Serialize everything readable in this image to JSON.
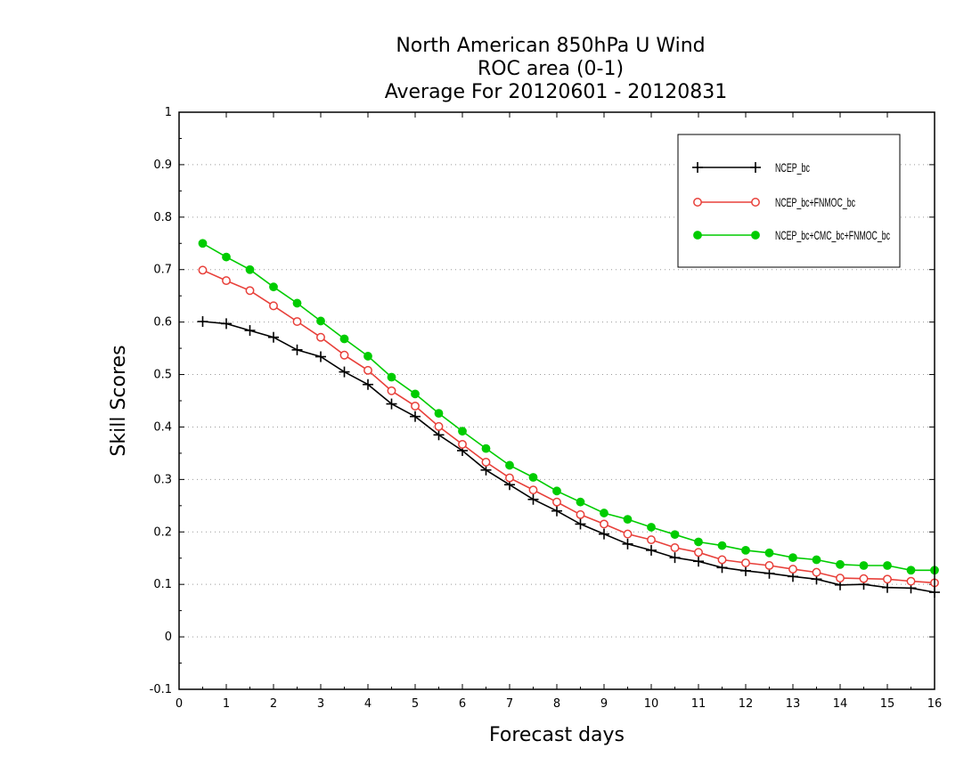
{
  "chart_data": {
    "type": "line",
    "title": [
      "North American 850hPa U Wind",
      "ROC area (0-1)",
      "Average For 20120601 - 20120831"
    ],
    "xlabel": "Forecast days",
    "ylabel": "Skill Scores",
    "xlim": [
      0,
      16
    ],
    "ylim": [
      -0.1,
      1
    ],
    "xticks": [
      0,
      1,
      2,
      3,
      4,
      5,
      6,
      7,
      8,
      9,
      10,
      11,
      12,
      13,
      14,
      15,
      16
    ],
    "yticks": [
      -0.1,
      0,
      0.1,
      0.2,
      0.3,
      0.4,
      0.5,
      0.6,
      0.7,
      0.8,
      0.9,
      1
    ],
    "ytick_labels": [
      "-0.1",
      "0",
      "0.1",
      "0.2",
      "0.3",
      "0.4",
      "0.5",
      "0.6",
      "0.7",
      "0.8",
      "0.9",
      "1"
    ],
    "grid": "horizontal-dotted",
    "legend_position": "top-right",
    "x": [
      0.5,
      1,
      1.5,
      2,
      2.5,
      3,
      3.5,
      4,
      4.5,
      5,
      5.5,
      6,
      6.5,
      7,
      7.5,
      8,
      8.5,
      9,
      9.5,
      10,
      10.5,
      11,
      11.5,
      12,
      12.5,
      13,
      13.5,
      14,
      14.5,
      15,
      15.5,
      16
    ],
    "series": [
      {
        "name": "NCEP_bc",
        "color": "#000000",
        "marker": "plus",
        "values": [
          0.601,
          0.597,
          0.584,
          0.571,
          0.547,
          0.534,
          0.505,
          0.481,
          0.444,
          0.42,
          0.385,
          0.355,
          0.318,
          0.29,
          0.262,
          0.24,
          0.215,
          0.196,
          0.177,
          0.165,
          0.151,
          0.144,
          0.132,
          0.126,
          0.121,
          0.115,
          0.11,
          0.099,
          0.1,
          0.094,
          0.093,
          0.085
        ]
      },
      {
        "name": "NCEP_bc+FNMOC_bc",
        "color": "#e8403a",
        "marker": "open-circle",
        "values": [
          0.699,
          0.679,
          0.66,
          0.631,
          0.601,
          0.571,
          0.537,
          0.508,
          0.469,
          0.44,
          0.401,
          0.367,
          0.333,
          0.303,
          0.28,
          0.257,
          0.233,
          0.215,
          0.196,
          0.185,
          0.17,
          0.161,
          0.147,
          0.141,
          0.136,
          0.129,
          0.123,
          0.112,
          0.111,
          0.11,
          0.106,
          0.103
        ]
      },
      {
        "name": "NCEP_bc+CMC_bc+FNMOC_bc",
        "color": "#00cc00",
        "marker": "filled-circle",
        "values": [
          0.75,
          0.724,
          0.7,
          0.667,
          0.636,
          0.602,
          0.568,
          0.535,
          0.495,
          0.463,
          0.426,
          0.392,
          0.359,
          0.327,
          0.304,
          0.278,
          0.257,
          0.236,
          0.224,
          0.209,
          0.195,
          0.181,
          0.174,
          0.165,
          0.16,
          0.151,
          0.147,
          0.138,
          0.136,
          0.136,
          0.127,
          0.127
        ]
      }
    ]
  }
}
